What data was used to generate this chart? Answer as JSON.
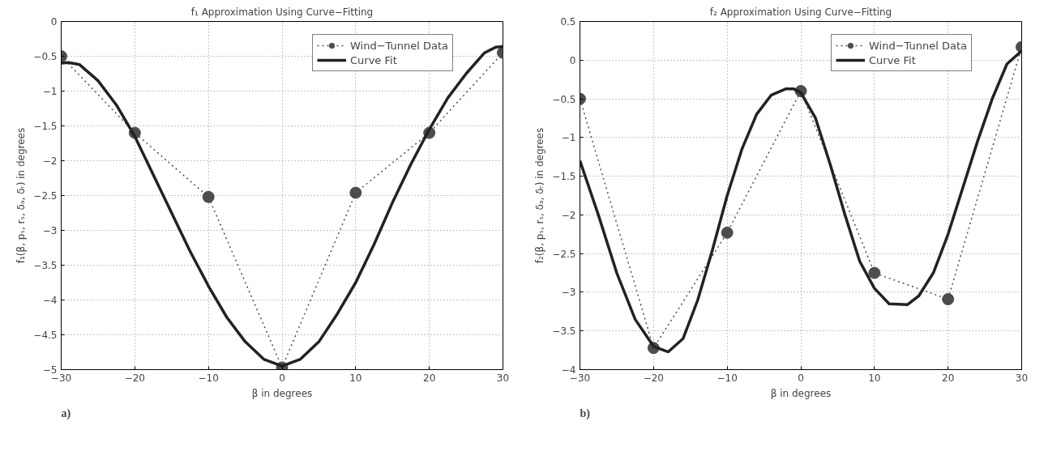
{
  "chart_data": [
    {
      "type": "line",
      "title": "f₁ Approximation Using Curve−Fitting",
      "xlabel": "β in degrees",
      "ylabel": "f₁(β, pₛ, rₛ, δₐ, δᵣ) in degrees",
      "xlim": [
        -30,
        30
      ],
      "xticks": [
        -30,
        -20,
        -10,
        0,
        10,
        20,
        30
      ],
      "ylim": [
        -5,
        0
      ],
      "yticks": [
        -5,
        -4.5,
        -4,
        -3.5,
        -3,
        -2.5,
        -2,
        -1.5,
        -1,
        -0.5,
        0
      ],
      "grid": true,
      "legend": "top right",
      "annotations": [
        "a)"
      ],
      "series": [
        {
          "name": "Wind−Tunnel Data",
          "color": "#4d4d4d",
          "marker": "circle",
          "line_style": "dotted",
          "x": [
            -30,
            -20,
            -10,
            0,
            10,
            20,
            30
          ],
          "values": [
            -0.5,
            -1.6,
            -2.52,
            -4.97,
            -2.46,
            -1.6,
            -0.45
          ]
        },
        {
          "name": "Curve Fit",
          "color": "#222222",
          "marker": "none",
          "line_style": "solid",
          "x": [
            -30,
            -29,
            -27.5,
            -25,
            -22.5,
            -20,
            -17.5,
            -15,
            -12.5,
            -10,
            -7.5,
            -5,
            -2.5,
            0,
            2.5,
            5,
            7.5,
            10,
            12.5,
            15,
            17.5,
            20,
            22.5,
            25,
            27.5,
            29,
            30
          ],
          "values": [
            -0.6,
            -0.59,
            -0.62,
            -0.85,
            -1.2,
            -1.65,
            -2.2,
            -2.75,
            -3.3,
            -3.8,
            -4.25,
            -4.6,
            -4.85,
            -4.95,
            -4.85,
            -4.6,
            -4.2,
            -3.75,
            -3.2,
            -2.6,
            -2.05,
            -1.55,
            -1.1,
            -0.75,
            -0.45,
            -0.37,
            -0.36
          ]
        }
      ]
    },
    {
      "type": "line",
      "title": "f₂ Approximation Using Curve−Fitting",
      "xlabel": "β in degrees",
      "ylabel": "f₂(β, pₛ, rₛ, δₐ, δᵣ) in degrees",
      "xlim": [
        -30,
        30
      ],
      "xticks": [
        -30,
        -20,
        -10,
        0,
        10,
        20,
        30
      ],
      "ylim": [
        -4,
        0.5
      ],
      "yticks": [
        -4,
        -3.5,
        -3,
        -2.5,
        -2,
        -1.5,
        -1,
        -0.5,
        0,
        0.5
      ],
      "grid": true,
      "legend": "top right",
      "annotations": [
        "b)"
      ],
      "series": [
        {
          "name": "Wind−Tunnel Data",
          "color": "#4d4d4d",
          "marker": "circle",
          "line_style": "dotted",
          "x": [
            -30,
            -20,
            -10,
            0,
            10,
            20,
            30
          ],
          "values": [
            -0.5,
            -3.72,
            -2.23,
            -0.4,
            -2.75,
            -3.09,
            0.17
          ]
        },
        {
          "name": "Curve Fit",
          "color": "#222222",
          "marker": "none",
          "line_style": "solid",
          "x": [
            -30,
            -27.5,
            -25,
            -22.5,
            -20,
            -18,
            -16,
            -14,
            -12,
            -10,
            -8,
            -6,
            -4,
            -2,
            -1,
            0,
            2,
            4,
            6,
            8,
            10,
            12,
            14.5,
            16,
            18,
            20,
            22,
            24,
            26,
            28,
            30
          ],
          "values": [
            -1.3,
            -2.0,
            -2.75,
            -3.35,
            -3.7,
            -3.77,
            -3.6,
            -3.1,
            -2.45,
            -1.75,
            -1.15,
            -0.7,
            -0.45,
            -0.37,
            -0.37,
            -0.42,
            -0.75,
            -1.35,
            -2.0,
            -2.6,
            -2.95,
            -3.15,
            -3.16,
            -3.05,
            -2.75,
            -2.25,
            -1.65,
            -1.05,
            -0.5,
            -0.05,
            0.12
          ]
        }
      ]
    }
  ]
}
